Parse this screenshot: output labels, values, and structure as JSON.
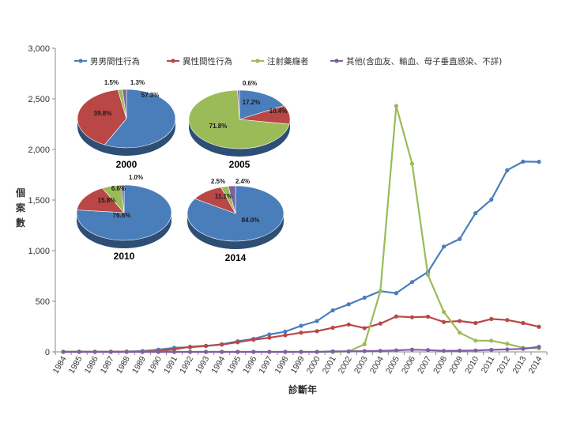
{
  "chart_data": {
    "type": "line",
    "title": "",
    "xlabel": "診斷年",
    "ylabel": "個案數",
    "ylim": [
      0,
      3000
    ],
    "yticks": [
      "0",
      "500",
      "1,000",
      "1,500",
      "2,000",
      "2,500",
      "3,000"
    ],
    "x": [
      "1984",
      "1985",
      "1986",
      "1987",
      "1988",
      "1989",
      "1990",
      "1991",
      "1992",
      "1993",
      "1994",
      "1995",
      "1996",
      "1997",
      "1998",
      "1999",
      "2000",
      "2001",
      "2002",
      "2003",
      "2004",
      "2005",
      "2006",
      "2007",
      "2008",
      "2009",
      "2010",
      "2011",
      "2012",
      "2013",
      "2014"
    ],
    "grid": false,
    "legend_position": "top",
    "series": [
      {
        "name": "男男間性行為",
        "color": "#4a7ebb",
        "values": [
          1,
          2,
          1,
          2,
          3,
          8,
          22,
          40,
          46,
          58,
          75,
          105,
          128,
          172,
          200,
          258,
          305,
          410,
          470,
          535,
          600,
          580,
          690,
          790,
          1040,
          1115,
          1370,
          1505,
          1795,
          1880,
          1878
        ]
      },
      {
        "name": "異性間性行為",
        "color": "#b94745",
        "values": [
          0,
          1,
          1,
          1,
          2,
          3,
          8,
          25,
          50,
          60,
          72,
          95,
          120,
          140,
          165,
          190,
          205,
          238,
          270,
          235,
          280,
          350,
          342,
          348,
          295,
          305,
          285,
          325,
          315,
          285,
          248
        ]
      },
      {
        "name": "注射藥癮者",
        "color": "#9bbb59",
        "values": [
          0,
          0,
          0,
          0,
          0,
          0,
          0,
          0,
          0,
          0,
          0,
          0,
          0,
          0,
          0,
          0,
          0,
          0,
          5,
          75,
          600,
          2430,
          1860,
          760,
          395,
          190,
          112,
          110,
          80,
          40,
          35
        ]
      },
      {
        "name": "其他(含血友、輸血、母子垂直感染、不詳)",
        "color": "#7d60a0",
        "values": [
          0,
          0,
          0,
          0,
          0,
          0,
          0,
          0,
          0,
          0,
          0,
          0,
          0,
          0,
          0,
          0,
          0,
          5,
          5,
          8,
          10,
          15,
          22,
          18,
          10,
          12,
          14,
          20,
          25,
          30,
          50
        ]
      }
    ],
    "insets": [
      {
        "year": "2000",
        "slices": [
          {
            "label": "57.3%",
            "value": 57.3,
            "color": "#4a7ebb"
          },
          {
            "label": "39.8%",
            "value": 39.8,
            "color": "#b94745"
          },
          {
            "label": "1.5%",
            "value": 1.5,
            "color": "#9bbb59"
          },
          {
            "label": "1.3%",
            "value": 1.3,
            "color": "#7d60a0"
          }
        ]
      },
      {
        "year": "2005",
        "slices": [
          {
            "label": "17.2%",
            "value": 17.2,
            "color": "#4a7ebb"
          },
          {
            "label": "10.4%",
            "value": 10.4,
            "color": "#b94745"
          },
          {
            "label": "71.8%",
            "value": 71.8,
            "color": "#9bbb59"
          },
          {
            "label": "0.6%",
            "value": 0.6,
            "color": "#7d60a0"
          }
        ]
      },
      {
        "year": "2010",
        "slices": [
          {
            "label": "76.6%",
            "value": 76.6,
            "color": "#4a7ebb"
          },
          {
            "label": "15.8%",
            "value": 15.8,
            "color": "#b94745"
          },
          {
            "label": "6.6%",
            "value": 6.6,
            "color": "#9bbb59"
          },
          {
            "label": "1.0%",
            "value": 1.0,
            "color": "#7d60a0"
          }
        ]
      },
      {
        "year": "2014",
        "slices": [
          {
            "label": "84.0%",
            "value": 84.0,
            "color": "#4a7ebb"
          },
          {
            "label": "11.1%",
            "value": 11.1,
            "color": "#b94745"
          },
          {
            "label": "2.5%",
            "value": 2.5,
            "color": "#9bbb59"
          },
          {
            "label": "2.4%",
            "value": 2.4,
            "color": "#7d60a0"
          }
        ]
      }
    ]
  }
}
